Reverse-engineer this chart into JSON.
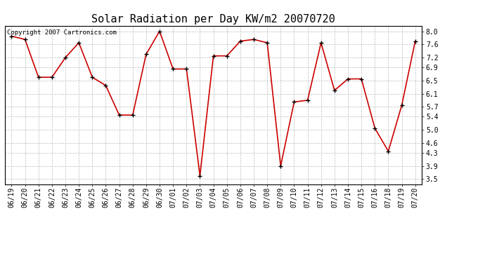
{
  "title": "Solar Radiation per Day KW/m2 20070720",
  "copyright_text": "Copyright 2007 Cartronics.com",
  "dates": [
    "06/19",
    "06/20",
    "06/21",
    "06/22",
    "06/23",
    "06/24",
    "06/25",
    "06/26",
    "06/27",
    "06/28",
    "06/29",
    "06/30",
    "07/01",
    "07/02",
    "07/03",
    "07/04",
    "07/05",
    "07/06",
    "07/07",
    "07/08",
    "07/09",
    "07/10",
    "07/11",
    "07/12",
    "07/13",
    "07/14",
    "07/15",
    "07/16",
    "07/18",
    "07/19",
    "07/20"
  ],
  "values": [
    7.85,
    7.75,
    6.6,
    6.6,
    7.2,
    7.65,
    6.6,
    6.35,
    5.45,
    5.45,
    7.3,
    8.0,
    6.85,
    6.85,
    3.6,
    7.25,
    7.25,
    7.7,
    7.75,
    7.65,
    3.9,
    5.85,
    5.9,
    7.65,
    6.2,
    6.55,
    6.55,
    5.05,
    4.35,
    5.75,
    7.7
  ],
  "yticks": [
    3.5,
    3.9,
    4.3,
    4.6,
    5.0,
    5.4,
    5.7,
    6.1,
    6.5,
    6.9,
    7.2,
    7.6,
    8.0
  ],
  "ylim": [
    3.35,
    8.15
  ],
  "line_color": "#cc0000",
  "marker_color": "#000000",
  "bg_color": "#ffffff",
  "grid_color": "#bbbbbb",
  "title_fontsize": 11,
  "tick_fontsize": 7,
  "copyright_fontsize": 6.5
}
